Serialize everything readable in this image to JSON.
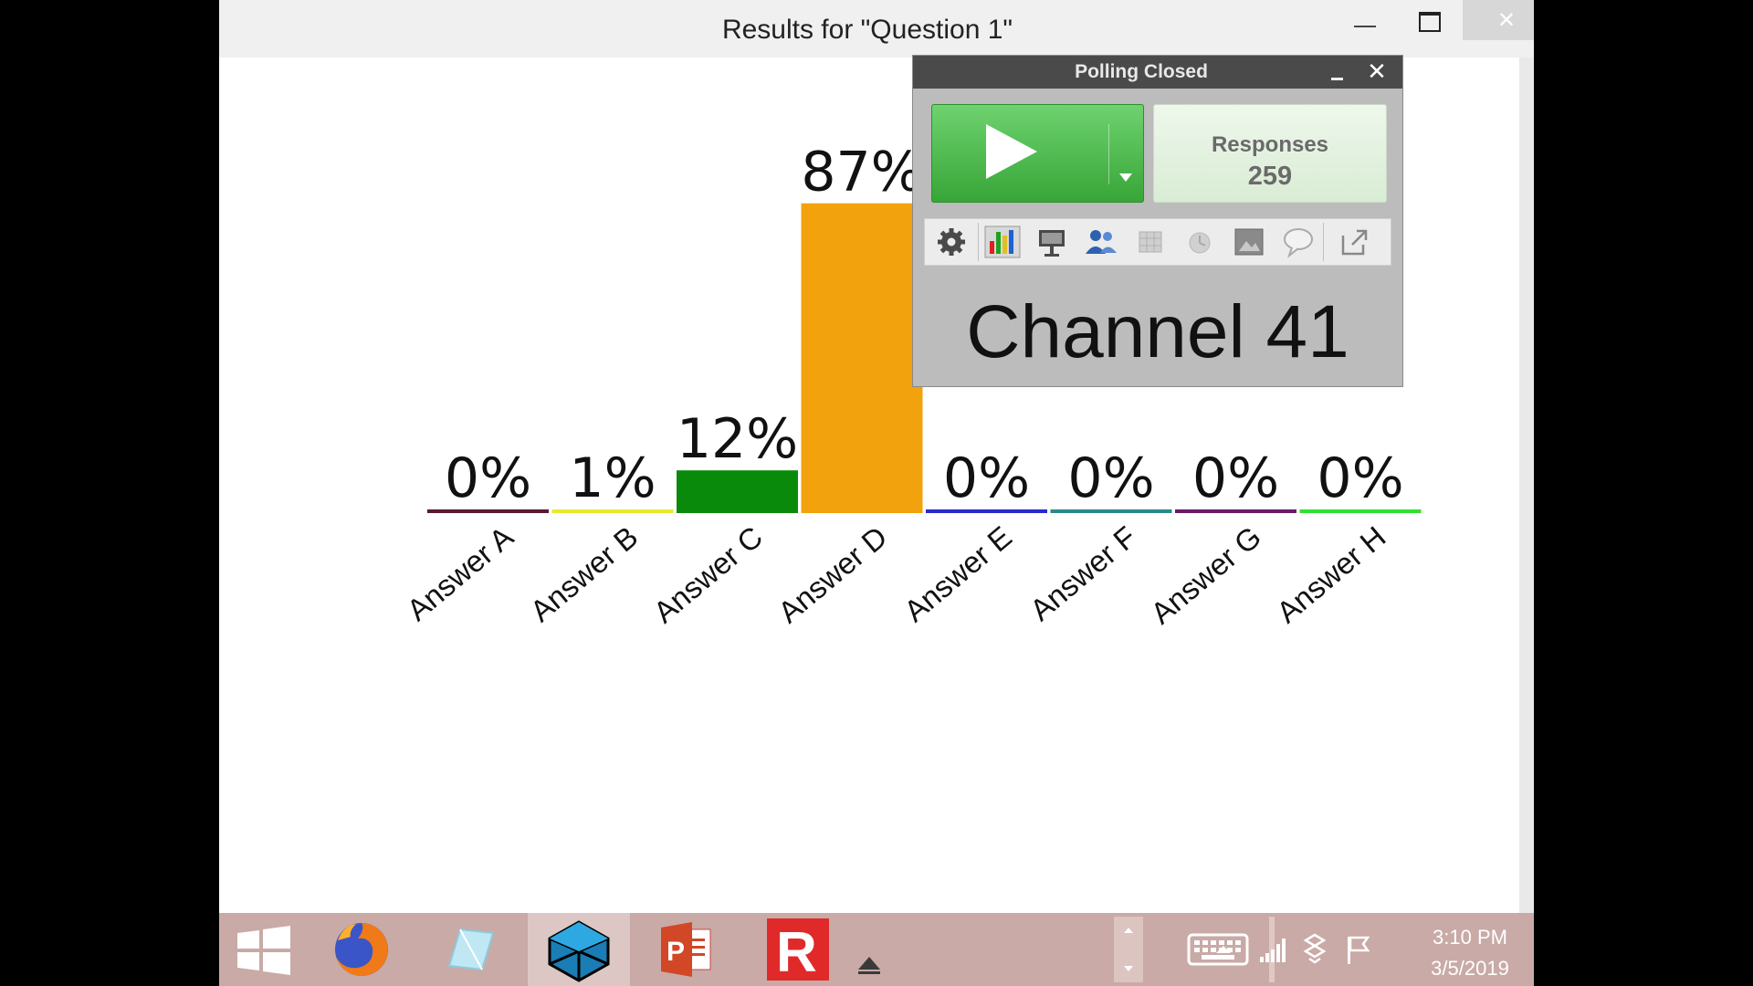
{
  "window": {
    "title": "Results for \"Question 1\""
  },
  "chart_data": {
    "type": "bar",
    "categories": [
      "Answer A",
      "Answer B",
      "Answer C",
      "Answer D",
      "Answer E",
      "Answer F",
      "Answer G",
      "Answer H"
    ],
    "values": [
      0,
      1,
      12,
      87,
      0,
      0,
      0,
      0
    ],
    "value_labels": [
      "0%",
      "1%",
      "12%",
      "87%",
      "0%",
      "0%",
      "0%",
      "0%"
    ],
    "colors": [
      "#5a1a2a",
      "#e8e830",
      "#0a8a0a",
      "#f2a20c",
      "#2a2ad0",
      "#2a8a8a",
      "#6a1a6a",
      "#30e030"
    ],
    "ylim": [
      0,
      100
    ],
    "grid": false
  },
  "poll": {
    "status": "Polling Closed",
    "responses_label": "Responses",
    "responses_count": "259",
    "channel": "Channel 41",
    "toolbar_icons": [
      "gear-icon",
      "bar-chart-icon",
      "presentation-icon",
      "participants-icon",
      "grid-icon",
      "timer-icon",
      "screenshot-icon",
      "comment-icon",
      "export-icon"
    ]
  },
  "taskbar": {
    "apps": [
      "windows-start-icon",
      "firefox-icon",
      "notepad-icon",
      "sketchup-icon",
      "powerpoint-icon",
      "responseware-icon"
    ],
    "time": "3:10 PM",
    "date": "3/5/2019"
  }
}
